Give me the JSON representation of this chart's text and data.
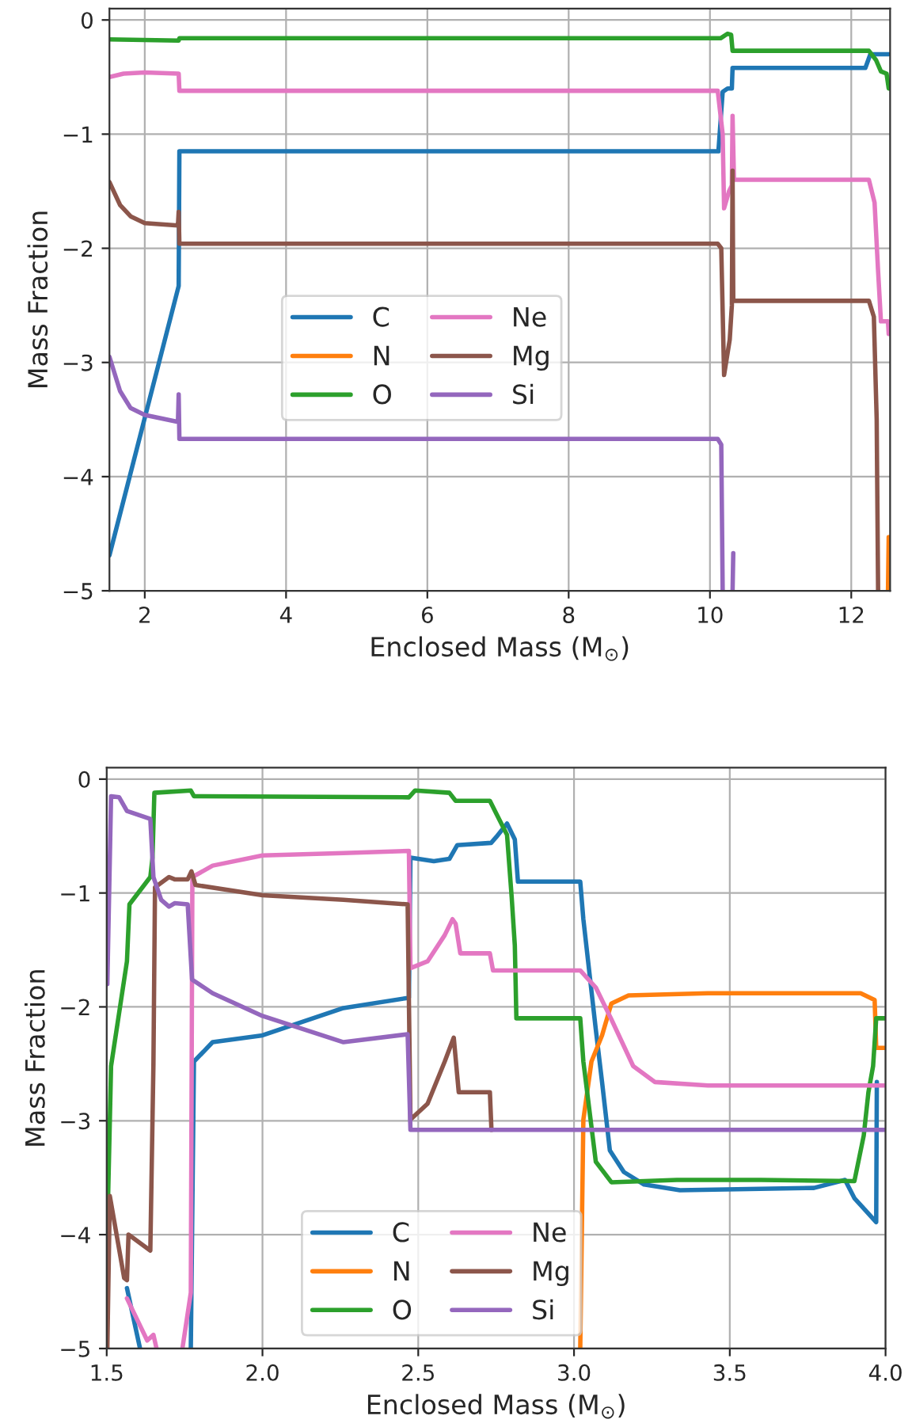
{
  "chart_data": [
    {
      "type": "line",
      "xlabel": "Enclosed Mass (M$_{⊙}$)",
      "ylabel": "Mass Fraction",
      "xlim": [
        1.5,
        12.55
      ],
      "xticks": [
        2,
        4,
        6,
        8,
        10,
        12
      ],
      "ylim": [
        -5,
        0.1
      ],
      "yticks": [
        {
          "value": -5,
          "label": "−5"
        },
        {
          "value": -4,
          "label": "−4"
        },
        {
          "value": -3,
          "label": "−3"
        },
        {
          "value": -2,
          "label": "−2"
        },
        {
          "value": -1,
          "label": "−1"
        },
        0
      ],
      "grid": true,
      "legend": "center",
      "line_style": "solid",
      "marker": "none",
      "series": [
        {
          "name": "C",
          "color": "#1f77b4",
          "x": [
            1.5,
            2.48,
            2.49,
            10.12,
            10.18,
            10.25,
            10.31,
            10.32,
            12.2,
            12.27,
            12.53
          ],
          "values": [
            -4.69,
            -2.33,
            -1.15,
            -1.15,
            -0.63,
            -0.6,
            -0.6,
            -0.42,
            -0.42,
            -0.3,
            -0.3
          ]
        },
        {
          "name": "N",
          "color": "#ff7f0e",
          "x": [
            12.52,
            12.53
          ],
          "values": [
            -5,
            -4.53
          ]
        },
        {
          "name": "O",
          "color": "#2ca02c",
          "x": [
            1.5,
            2.48,
            2.49,
            10.15,
            10.25,
            10.3,
            10.32,
            12.25,
            12.35,
            12.42,
            12.5,
            12.53
          ],
          "values": [
            -0.17,
            -0.18,
            -0.16,
            -0.16,
            -0.12,
            -0.13,
            -0.27,
            -0.27,
            -0.35,
            -0.45,
            -0.47,
            -0.6
          ]
        },
        {
          "name": "Ne",
          "color": "#e377c2",
          "x": [
            1.5,
            1.7,
            2.0,
            2.48,
            2.49,
            10.11,
            10.18,
            10.2,
            10.27,
            10.31,
            10.32,
            10.34,
            12.25,
            12.33,
            12.38,
            12.42,
            12.52,
            12.53
          ],
          "values": [
            -0.5,
            -0.47,
            -0.46,
            -0.47,
            -0.62,
            -0.62,
            -1.0,
            -1.65,
            -1.5,
            -1.45,
            -0.84,
            -1.4,
            -1.4,
            -1.6,
            -2.2,
            -2.64,
            -2.64,
            -2.75
          ]
        },
        {
          "name": "Mg",
          "color": "#8c564b",
          "x": [
            1.5,
            1.65,
            1.8,
            2.0,
            2.47,
            2.48,
            2.49,
            10.11,
            10.16,
            10.2,
            10.28,
            10.31,
            10.32,
            10.33,
            12.25,
            12.32,
            12.36,
            12.38
          ],
          "values": [
            -1.42,
            -1.62,
            -1.72,
            -1.78,
            -1.8,
            -1.68,
            -1.96,
            -1.96,
            -2.0,
            -3.11,
            -2.8,
            -2.5,
            -1.32,
            -2.46,
            -2.46,
            -2.6,
            -3.5,
            -5
          ]
        },
        {
          "name": "Si",
          "color": "#9467bd",
          "x": [
            1.5,
            1.65,
            1.8,
            2.0,
            2.47,
            2.48,
            2.49,
            10.11,
            10.16,
            10.18,
            10.25,
            10.32,
            10.33
          ],
          "values": [
            -2.95,
            -3.25,
            -3.4,
            -3.46,
            -3.52,
            -3.28,
            -3.67,
            -3.67,
            -3.72,
            -5,
            null,
            -5,
            -4.67
          ]
        }
      ]
    },
    {
      "type": "line",
      "xlabel": "Enclosed Mass (M$_{⊙}$)",
      "ylabel": "Mass Fraction",
      "xlim": [
        1.5,
        4.0
      ],
      "xticks": [
        1.5,
        {
          "value": 2,
          "label": "2.0"
        },
        2.5,
        {
          "value": 3,
          "label": "3.0"
        },
        3.5,
        {
          "value": 4,
          "label": "4.0"
        }
      ],
      "ylim": [
        -5,
        0.1
      ],
      "yticks": [
        {
          "value": -5,
          "label": "−5"
        },
        {
          "value": -4,
          "label": "−4"
        },
        {
          "value": -3,
          "label": "−3"
        },
        {
          "value": -2,
          "label": "−2"
        },
        {
          "value": -1,
          "label": "−1"
        },
        0
      ],
      "grid": true,
      "legend": "lower center",
      "line_style": "solid",
      "marker": "none",
      "series": [
        {
          "name": "C",
          "color": "#1f77b4",
          "x": [
            1.565,
            1.607,
            1.7,
            1.77,
            1.78,
            1.84,
            2.0,
            2.26,
            2.47,
            2.475,
            2.55,
            2.6,
            2.625,
            2.734,
            2.75,
            2.785,
            2.81,
            2.82,
            3.02,
            3.03,
            3.07,
            3.09,
            3.115,
            3.16,
            3.225,
            3.34,
            3.77,
            3.87,
            3.9,
            3.97,
            3.972
          ],
          "values": [
            -4.47,
            -5,
            null,
            -5,
            -2.48,
            -2.31,
            -2.25,
            -2.01,
            -1.92,
            -0.69,
            -0.72,
            -0.7,
            -0.58,
            -0.56,
            -0.51,
            -0.39,
            -0.53,
            -0.9,
            -0.9,
            -1.23,
            -2.2,
            -2.66,
            -3.26,
            -3.45,
            -3.56,
            -3.61,
            -3.59,
            -3.52,
            -3.68,
            -3.89,
            -2.66
          ]
        },
        {
          "name": "N",
          "color": "#ff7f0e",
          "x": [
            3.02,
            3.03,
            3.056,
            3.09,
            3.12,
            3.175,
            3.43,
            3.92,
            3.965,
            3.97,
            4.0
          ],
          "values": [
            -5,
            -2.99,
            -2.48,
            -2.25,
            -1.97,
            -1.9,
            -1.88,
            -1.88,
            -1.94,
            -2.36,
            -2.36
          ]
        },
        {
          "name": "O",
          "color": "#2ca02c",
          "x": [
            1.5,
            1.514,
            1.565,
            1.573,
            1.64,
            1.647,
            1.653,
            1.77,
            1.78,
            2.47,
            2.49,
            2.6,
            2.62,
            2.73,
            2.75,
            2.785,
            2.8,
            2.81,
            2.815,
            3.02,
            3.03,
            3.07,
            3.12,
            3.33,
            3.6,
            3.9,
            3.93,
            3.945,
            3.96,
            3.97,
            4.0
          ],
          "values": [
            -4.21,
            -2.52,
            -1.6,
            -1.1,
            -0.86,
            -0.69,
            -0.12,
            -0.1,
            -0.15,
            -0.16,
            -0.1,
            -0.12,
            -0.19,
            -0.19,
            -0.3,
            -0.49,
            -1.04,
            -1.46,
            -2.1,
            -2.1,
            -2.48,
            -3.36,
            -3.54,
            -3.52,
            -3.52,
            -3.53,
            -3.13,
            -2.75,
            -2.52,
            -2.1,
            -2.1
          ]
        },
        {
          "name": "Ne",
          "color": "#e377c2",
          "x": [
            1.565,
            1.63,
            1.65,
            1.66,
            1.7,
            1.743,
            1.77,
            1.775,
            1.84,
            2.0,
            2.26,
            2.47,
            2.475,
            2.53,
            2.585,
            2.61,
            2.62,
            2.635,
            2.73,
            2.74,
            3.02,
            3.07,
            3.12,
            3.19,
            3.26,
            3.43,
            4.0
          ],
          "values": [
            -4.56,
            -4.93,
            -4.88,
            -5,
            null,
            -5,
            -4.51,
            -0.86,
            -0.76,
            -0.67,
            -0.65,
            -0.63,
            -1.66,
            -1.6,
            -1.37,
            -1.23,
            -1.27,
            -1.53,
            -1.53,
            -1.68,
            -1.68,
            -1.83,
            -2.11,
            -2.52,
            -2.66,
            -2.69,
            -2.69
          ]
        },
        {
          "name": "Mg",
          "color": "#8c564b",
          "x": [
            1.502,
            1.51,
            1.556,
            1.565,
            1.57,
            1.64,
            1.65,
            1.655,
            1.7,
            1.718,
            1.76,
            1.772,
            1.785,
            2.0,
            2.26,
            2.466,
            2.475,
            2.53,
            2.585,
            2.614,
            2.63,
            2.73,
            2.735
          ],
          "values": [
            -5,
            -3.66,
            -4.38,
            -4.4,
            -4.0,
            -4.14,
            -2.5,
            -0.95,
            -0.86,
            -0.88,
            -0.88,
            -0.81,
            -0.93,
            -1.02,
            -1.06,
            -1.1,
            -2.99,
            -2.85,
            -2.48,
            -2.27,
            -2.75,
            -2.75,
            -3.08
          ]
        },
        {
          "name": "Si",
          "color": "#9467bd",
          "x": [
            1.502,
            1.514,
            1.54,
            1.565,
            1.64,
            1.65,
            1.675,
            1.7,
            1.718,
            1.76,
            1.774,
            1.84,
            2.0,
            2.26,
            2.466,
            2.475,
            4.0
          ],
          "values": [
            -1.8,
            -0.15,
            -0.16,
            -0.28,
            -0.35,
            -0.86,
            -1.06,
            -1.12,
            -1.09,
            -1.1,
            -1.76,
            -1.88,
            -2.08,
            -2.31,
            -2.24,
            -3.08,
            -3.08
          ]
        }
      ]
    }
  ]
}
